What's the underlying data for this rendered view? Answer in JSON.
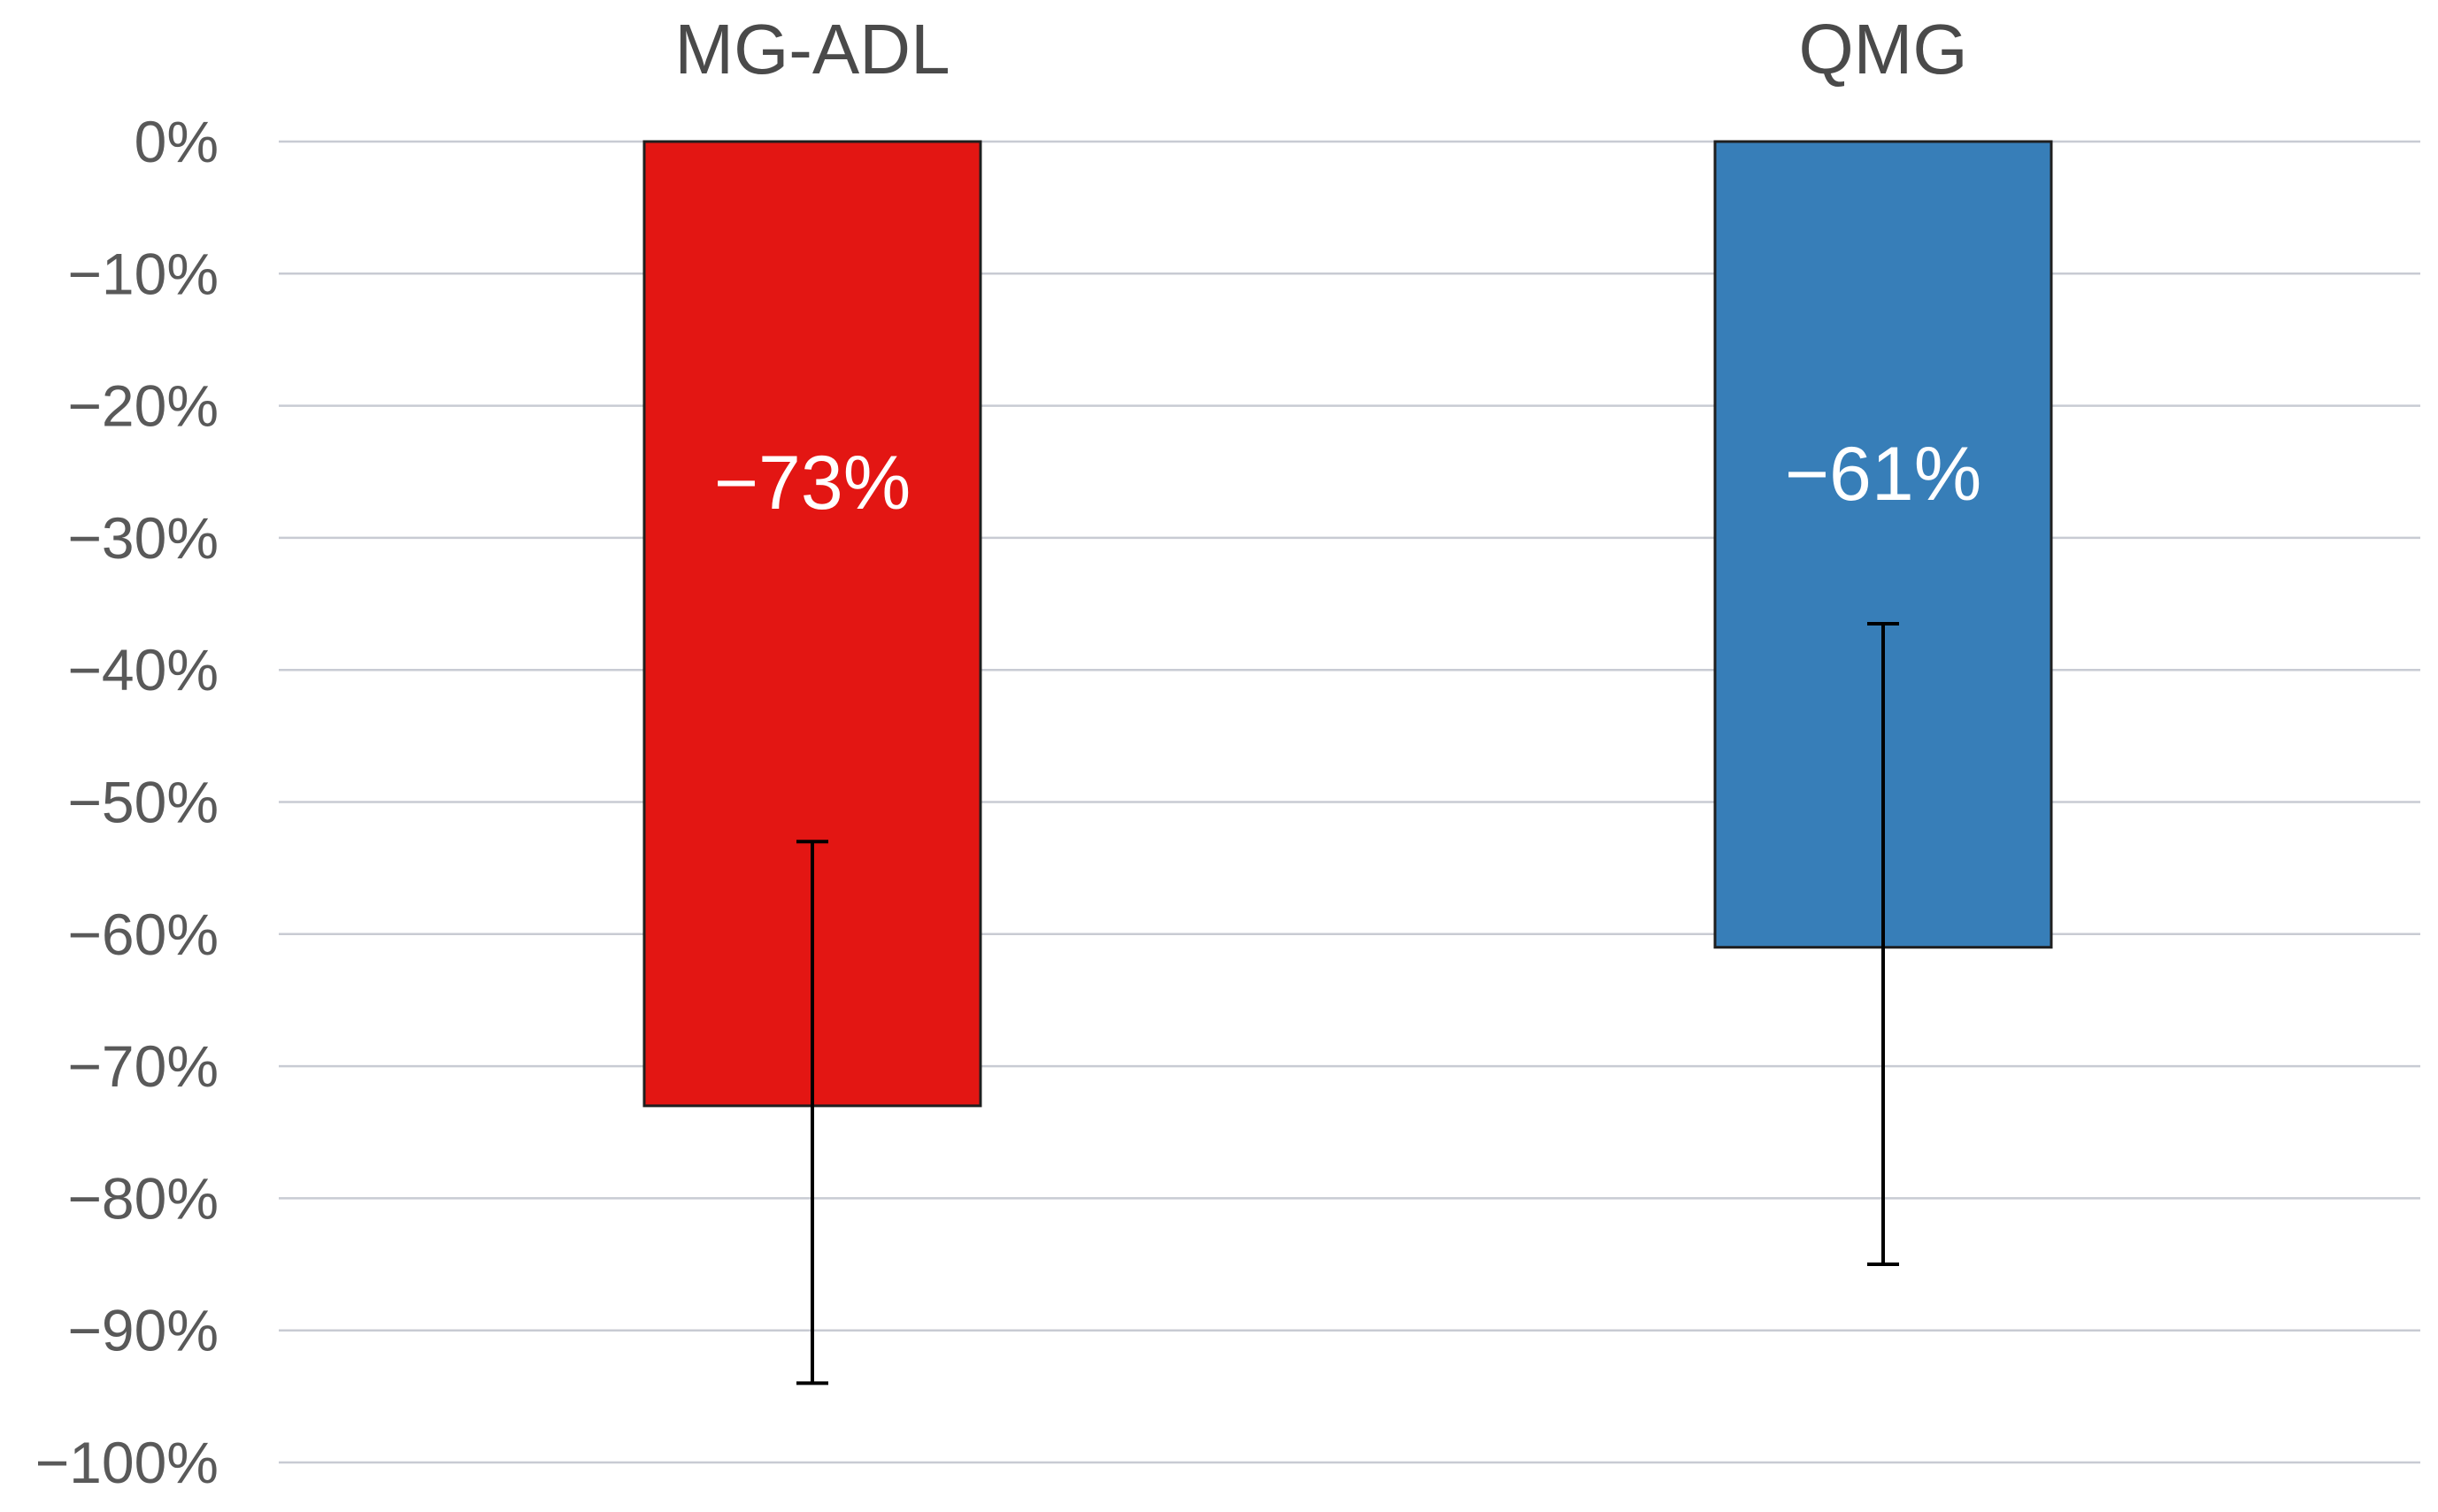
{
  "chart_data": {
    "type": "bar",
    "title": "",
    "xlabel": "",
    "ylabel": "",
    "categories": [
      "MG-ADL",
      "QMG"
    ],
    "values": [
      -73,
      -61
    ],
    "data_labels": [
      "−73%",
      "−61%"
    ],
    "error_bars": [
      {
        "low": -94,
        "high": -53
      },
      {
        "low": -85,
        "high": -36.5
      }
    ],
    "bar_colors": [
      "#e31613",
      "#377eb8"
    ],
    "ylim": [
      -100,
      0
    ],
    "yticks": [
      0,
      -10,
      -20,
      -30,
      -40,
      -50,
      -60,
      -70,
      -80,
      -90,
      -100
    ],
    "ytick_labels": [
      "0%",
      "−10%",
      "−20%",
      "−30%",
      "−40%",
      "−50%",
      "−60%",
      "−70%",
      "−80%",
      "−90%",
      "−100%"
    ],
    "category_axis_position": "top",
    "grid": true,
    "legend": "none"
  }
}
